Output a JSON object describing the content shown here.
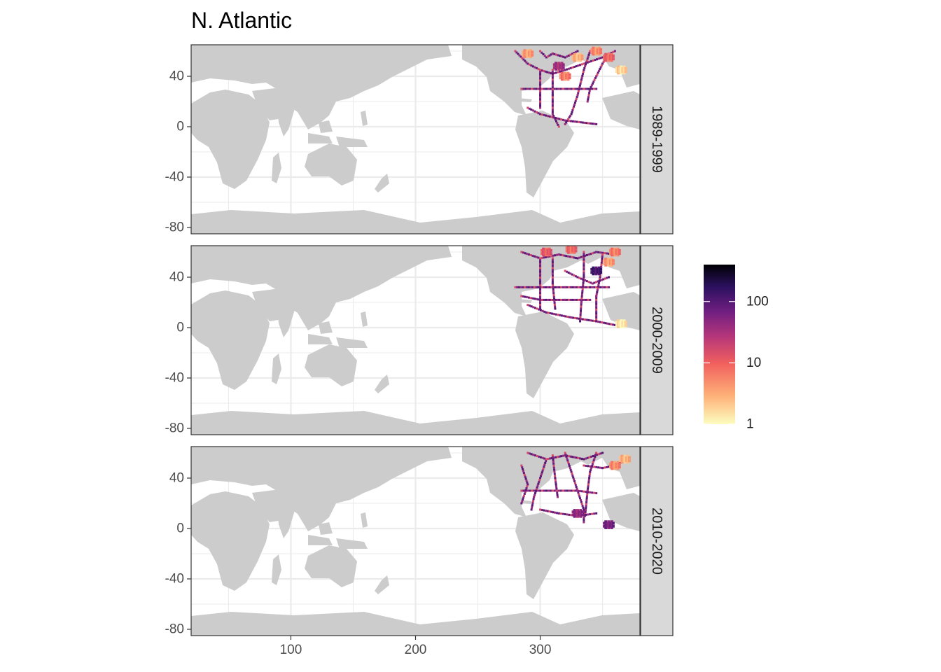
{
  "chart_data": {
    "type": "heatmap",
    "title": "N. Atlantic",
    "facet_strips": [
      "1989-1999",
      "2000-2009",
      "2010-2020"
    ],
    "x_ticks": [
      100,
      200,
      300
    ],
    "y_ticks": [
      40,
      0,
      -40,
      -80
    ],
    "xlim": [
      20,
      380
    ],
    "ylim": [
      -85,
      65
    ],
    "grid": true,
    "legend": {
      "position": "right",
      "scale": "log",
      "ticks": [
        "100",
        "10",
        "1"
      ],
      "tick_values": [
        100,
        10,
        1
      ],
      "range": [
        1,
        400
      ],
      "colors": [
        "#fcfdbf",
        "#feb078",
        "#f1605d",
        "#b5367a",
        "#721f81",
        "#2c115f",
        "#000004"
      ]
    },
    "colors": {
      "land": "#cccccc",
      "ocean": "#ffffff",
      "grid": "#ebebeb",
      "strip": "#d9d9d9",
      "panel_border": "#333333"
    },
    "cruise_tracks": [
      {
        "period": "1989-1999",
        "segments": [
          [
            [
              280,
              60
            ],
            [
              290,
              50
            ],
            [
              300,
              45
            ],
            [
              310,
              42
            ],
            [
              320,
              45
            ],
            [
              335,
              50
            ],
            [
              350,
              55
            ],
            [
              360,
              60
            ]
          ],
          [
            [
              300,
              45
            ],
            [
              300,
              30
            ],
            [
              300,
              15
            ]
          ],
          [
            [
              285,
              30
            ],
            [
              300,
              30
            ],
            [
              315,
              30
            ],
            [
              330,
              30
            ],
            [
              345,
              30
            ]
          ],
          [
            [
              310,
              45
            ],
            [
              310,
              25
            ],
            [
              310,
              10
            ],
            [
              315,
              0
            ]
          ],
          [
            [
              340,
              60
            ],
            [
              335,
              45
            ],
            [
              330,
              25
            ],
            [
              325,
              10
            ],
            [
              320,
              2
            ]
          ],
          [
            [
              355,
              58
            ],
            [
              350,
              50
            ],
            [
              345,
              40
            ],
            [
              340,
              30
            ],
            [
              338,
              20
            ]
          ],
          [
            [
              290,
              15
            ],
            [
              300,
              10
            ],
            [
              320,
              5
            ],
            [
              345,
              2
            ]
          ],
          [
            [
              300,
              60
            ],
            [
              305,
              55
            ],
            [
              310,
              58
            ],
            [
              320,
              55
            ],
            [
              330,
              60
            ]
          ]
        ],
        "clusters": [
          {
            "lon": 315,
            "lat": 48,
            "value": 30
          },
          {
            "lon": 345,
            "lat": 60,
            "value": 5
          },
          {
            "lon": 355,
            "lat": 55,
            "value": 8
          },
          {
            "lon": 290,
            "lat": 58,
            "value": 4
          },
          {
            "lon": 330,
            "lat": 55,
            "value": 3
          },
          {
            "lon": 320,
            "lat": 40,
            "value": 6
          },
          {
            "lon": 365,
            "lat": 45,
            "value": 2
          }
        ]
      },
      {
        "period": "2000-2009",
        "segments": [
          [
            [
              285,
              60
            ],
            [
              300,
              55
            ],
            [
              315,
              58
            ],
            [
              330,
              55
            ],
            [
              345,
              60
            ],
            [
              360,
              58
            ]
          ],
          [
            [
              300,
              55
            ],
            [
              300,
              35
            ],
            [
              300,
              15
            ]
          ],
          [
            [
              280,
              32
            ],
            [
              300,
              32
            ],
            [
              320,
              32
            ],
            [
              340,
              32
            ],
            [
              355,
              32
            ]
          ],
          [
            [
              285,
              25
            ],
            [
              300,
              22
            ],
            [
              320,
              22
            ],
            [
              340,
              22
            ]
          ],
          [
            [
              310,
              55
            ],
            [
              310,
              35
            ],
            [
              312,
              15
            ]
          ],
          [
            [
              335,
              60
            ],
            [
              335,
              40
            ],
            [
              333,
              20
            ],
            [
              332,
              5
            ]
          ],
          [
            [
              350,
              58
            ],
            [
              348,
              40
            ],
            [
              345,
              25
            ],
            [
              345,
              5
            ]
          ],
          [
            [
              290,
              18
            ],
            [
              305,
              12
            ],
            [
              325,
              8
            ],
            [
              345,
              5
            ],
            [
              360,
              2
            ]
          ],
          [
            [
              320,
              45
            ],
            [
              330,
              40
            ],
            [
              342,
              35
            ],
            [
              355,
              40
            ]
          ]
        ],
        "clusters": [
          {
            "lon": 345,
            "lat": 45,
            "value": 120
          },
          {
            "lon": 360,
            "lat": 60,
            "value": 6
          },
          {
            "lon": 355,
            "lat": 52,
            "value": 4
          },
          {
            "lon": 365,
            "lat": 3,
            "value": 1.5
          },
          {
            "lon": 305,
            "lat": 60,
            "value": 10
          },
          {
            "lon": 325,
            "lat": 62,
            "value": 8
          }
        ]
      },
      {
        "period": "2010-2020",
        "segments": [
          [
            [
              290,
              60
            ],
            [
              305,
              55
            ],
            [
              320,
              58
            ],
            [
              335,
              55
            ],
            [
              350,
              60
            ]
          ],
          [
            [
              305,
              55
            ],
            [
              300,
              40
            ],
            [
              295,
              25
            ],
            [
              293,
              15
            ]
          ],
          [
            [
              285,
              30
            ],
            [
              300,
              30
            ],
            [
              315,
              30
            ],
            [
              330,
              30
            ],
            [
              345,
              28
            ]
          ],
          [
            [
              310,
              58
            ],
            [
              312,
              40
            ],
            [
              314,
              25
            ]
          ],
          [
            [
              320,
              60
            ],
            [
              325,
              45
            ],
            [
              330,
              30
            ],
            [
              335,
              15
            ],
            [
              335,
              5
            ]
          ],
          [
            [
              345,
              60
            ],
            [
              340,
              45
            ],
            [
              338,
              30
            ],
            [
              336,
              10
            ]
          ],
          [
            [
              285,
              50
            ],
            [
              290,
              35
            ],
            [
              285,
              20
            ]
          ],
          [
            [
              300,
              15
            ],
            [
              315,
              12
            ],
            [
              330,
              10
            ],
            [
              345,
              12
            ]
          ],
          [
            [
              335,
              50
            ],
            [
              350,
              48
            ],
            [
              360,
              50
            ],
            [
              370,
              55
            ]
          ]
        ],
        "clusters": [
          {
            "lon": 330,
            "lat": 12,
            "value": 40
          },
          {
            "lon": 360,
            "lat": 50,
            "value": 5
          },
          {
            "lon": 368,
            "lat": 55,
            "value": 3
          },
          {
            "lon": 355,
            "lat": 3,
            "value": 60
          }
        ]
      }
    ]
  }
}
